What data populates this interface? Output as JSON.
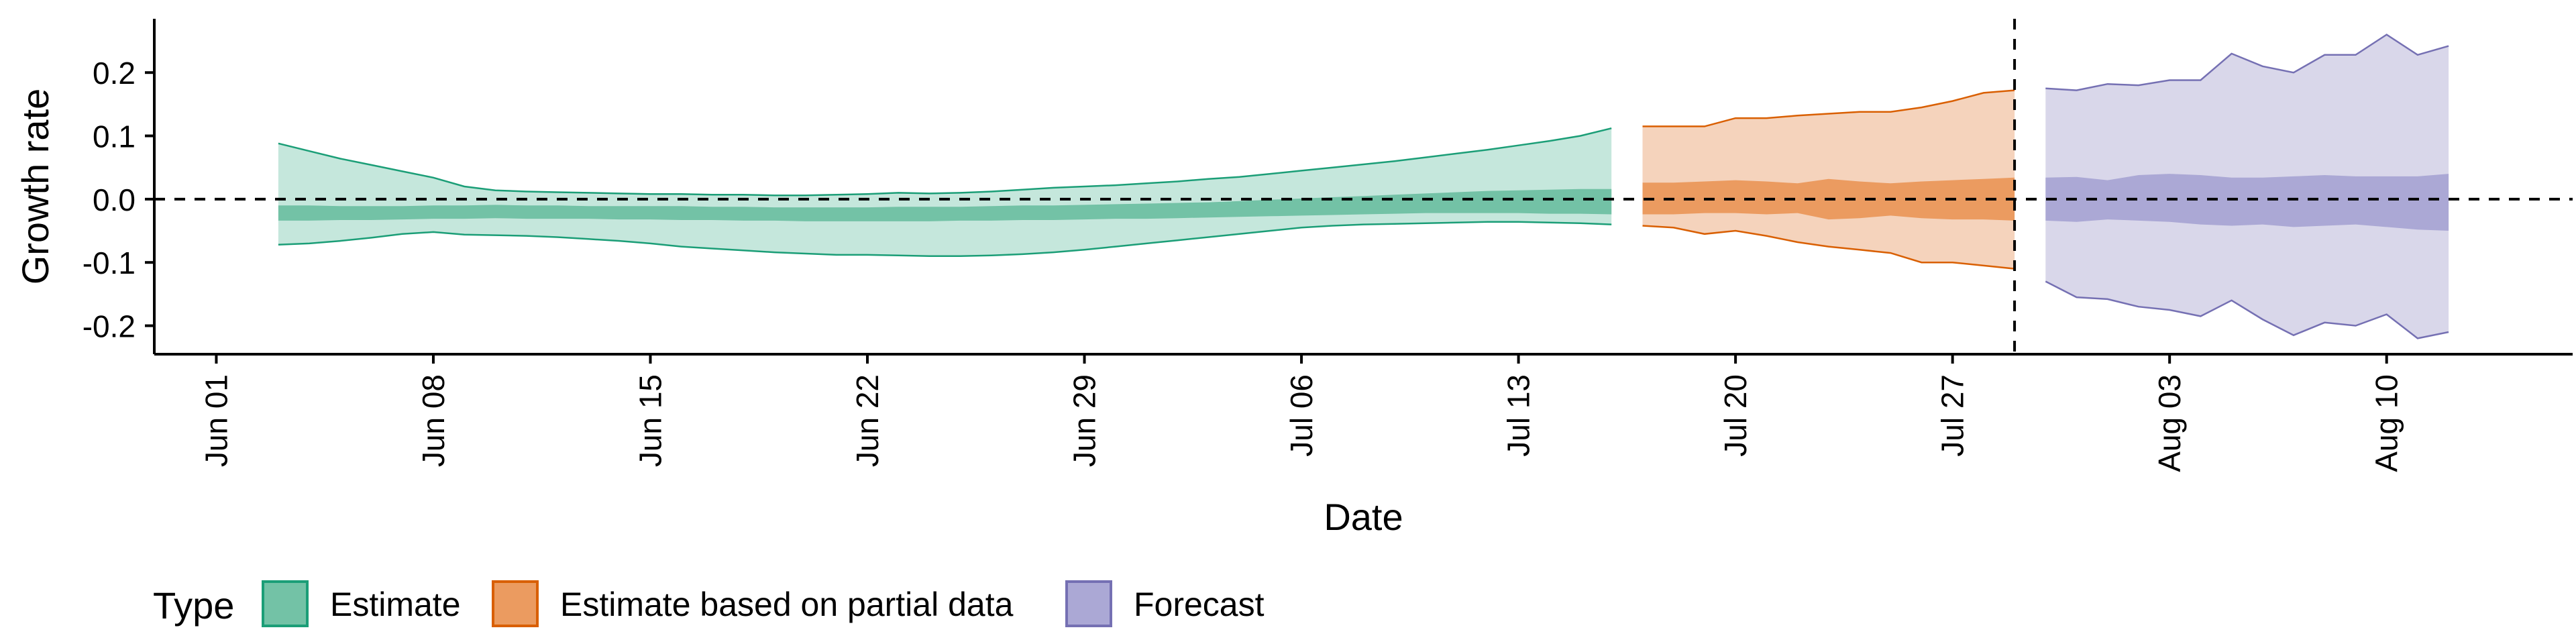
{
  "chart_data": {
    "type": "area",
    "xlabel": "Date",
    "ylabel": "Growth rate",
    "xlim": [
      "2020-05-30",
      "2020-08-16"
    ],
    "ylim": [
      -0.245,
      0.285
    ],
    "x_ticks": [
      "2020-06-01",
      "2020-06-08",
      "2020-06-15",
      "2020-06-22",
      "2020-06-29",
      "2020-07-06",
      "2020-07-13",
      "2020-07-20",
      "2020-07-27",
      "2020-08-03",
      "2020-08-10"
    ],
    "x_tick_labels": [
      "Jun 01",
      "Jun 08",
      "Jun 15",
      "Jun 22",
      "Jun 29",
      "Jul 06",
      "Jul 13",
      "Jul 20",
      "Jul 27",
      "Aug 03",
      "Aug 10"
    ],
    "y_ticks": [
      -0.2,
      -0.1,
      0.0,
      0.1,
      0.2
    ],
    "y_tick_labels": [
      "-0.2",
      "-0.1",
      "0.0",
      "0.1",
      "0.2"
    ],
    "reference_lines": {
      "horizontal_y": 0.0,
      "vertical_x": "2020-07-29"
    },
    "grid": false,
    "legend": {
      "title": "Type",
      "position": "bottom-left",
      "entries": [
        "Estimate",
        "Estimate based on partial data",
        "Forecast"
      ]
    },
    "series": [
      {
        "name": "Estimate",
        "color": "#1b9e77",
        "fill_outer": "#c5e7dc",
        "fill_inner": "#73c2a6",
        "x": [
          "2020-06-03",
          "2020-06-04",
          "2020-06-05",
          "2020-06-06",
          "2020-06-07",
          "2020-06-08",
          "2020-06-09",
          "2020-06-10",
          "2020-06-11",
          "2020-06-12",
          "2020-06-13",
          "2020-06-14",
          "2020-06-15",
          "2020-06-16",
          "2020-06-17",
          "2020-06-18",
          "2020-06-19",
          "2020-06-20",
          "2020-06-21",
          "2020-06-22",
          "2020-06-23",
          "2020-06-24",
          "2020-06-25",
          "2020-06-26",
          "2020-06-27",
          "2020-06-28",
          "2020-06-29",
          "2020-06-30",
          "2020-07-01",
          "2020-07-02",
          "2020-07-03",
          "2020-07-04",
          "2020-07-05",
          "2020-07-06",
          "2020-07-07",
          "2020-07-08",
          "2020-07-09",
          "2020-07-10",
          "2020-07-11",
          "2020-07-12",
          "2020-07-13",
          "2020-07-14",
          "2020-07-15",
          "2020-07-16"
        ],
        "upper90": [
          0.088,
          0.076,
          0.064,
          0.054,
          0.044,
          0.034,
          0.02,
          0.014,
          0.012,
          0.011,
          0.01,
          0.009,
          0.008,
          0.008,
          0.007,
          0.007,
          0.006,
          0.006,
          0.007,
          0.008,
          0.01,
          0.009,
          0.01,
          0.012,
          0.015,
          0.018,
          0.02,
          0.022,
          0.025,
          0.028,
          0.032,
          0.035,
          0.04,
          0.045,
          0.05,
          0.055,
          0.06,
          0.066,
          0.072,
          0.078,
          0.085,
          0.092,
          0.1,
          0.112
        ],
        "upper50": [
          -0.01,
          -0.01,
          -0.011,
          -0.011,
          -0.011,
          -0.01,
          -0.01,
          -0.009,
          -0.01,
          -0.01,
          -0.011,
          -0.011,
          -0.011,
          -0.011,
          -0.012,
          -0.012,
          -0.013,
          -0.013,
          -0.013,
          -0.013,
          -0.012,
          -0.012,
          -0.012,
          -0.011,
          -0.01,
          -0.01,
          -0.009,
          -0.008,
          -0.007,
          -0.006,
          -0.005,
          -0.003,
          -0.001,
          0.001,
          0.003,
          0.005,
          0.007,
          0.009,
          0.011,
          0.013,
          0.014,
          0.015,
          0.016,
          0.016
        ],
        "lower50": [
          -0.034,
          -0.034,
          -0.033,
          -0.033,
          -0.032,
          -0.031,
          -0.031,
          -0.03,
          -0.031,
          -0.031,
          -0.031,
          -0.032,
          -0.032,
          -0.033,
          -0.033,
          -0.034,
          -0.034,
          -0.035,
          -0.035,
          -0.035,
          -0.035,
          -0.035,
          -0.034,
          -0.034,
          -0.033,
          -0.033,
          -0.032,
          -0.031,
          -0.031,
          -0.03,
          -0.029,
          -0.028,
          -0.027,
          -0.026,
          -0.025,
          -0.024,
          -0.023,
          -0.022,
          -0.022,
          -0.022,
          -0.022,
          -0.023,
          -0.023,
          -0.024
        ],
        "lower90": [
          -0.072,
          -0.07,
          -0.066,
          -0.061,
          -0.055,
          -0.052,
          -0.056,
          -0.057,
          -0.058,
          -0.06,
          -0.063,
          -0.066,
          -0.07,
          -0.075,
          -0.078,
          -0.081,
          -0.084,
          -0.086,
          -0.088,
          -0.088,
          -0.089,
          -0.09,
          -0.09,
          -0.089,
          -0.087,
          -0.084,
          -0.08,
          -0.075,
          -0.07,
          -0.065,
          -0.06,
          -0.055,
          -0.05,
          -0.045,
          -0.042,
          -0.04,
          -0.039,
          -0.038,
          -0.037,
          -0.036,
          -0.036,
          -0.037,
          -0.038,
          -0.04
        ]
      },
      {
        "name": "Estimate based on partial data",
        "color": "#d95f02",
        "fill_outer": "#f5d3bc",
        "fill_inner": "#eb9b60",
        "x": [
          "2020-07-17",
          "2020-07-18",
          "2020-07-19",
          "2020-07-20",
          "2020-07-21",
          "2020-07-22",
          "2020-07-23",
          "2020-07-24",
          "2020-07-25",
          "2020-07-26",
          "2020-07-27",
          "2020-07-28",
          "2020-07-29"
        ],
        "upper90": [
          0.115,
          0.115,
          0.115,
          0.128,
          0.128,
          0.132,
          0.135,
          0.138,
          0.138,
          0.145,
          0.155,
          0.168,
          0.172
        ],
        "upper50": [
          0.026,
          0.026,
          0.028,
          0.03,
          0.028,
          0.025,
          0.032,
          0.028,
          0.025,
          0.028,
          0.03,
          0.032,
          0.034
        ],
        "lower50": [
          -0.024,
          -0.024,
          -0.022,
          -0.022,
          -0.024,
          -0.022,
          -0.032,
          -0.03,
          -0.026,
          -0.03,
          -0.032,
          -0.032,
          -0.034
        ],
        "lower90": [
          -0.042,
          -0.045,
          -0.055,
          -0.05,
          -0.058,
          -0.068,
          -0.075,
          -0.08,
          -0.085,
          -0.1,
          -0.1,
          -0.105,
          -0.11
        ]
      },
      {
        "name": "Forecast",
        "color": "#7570b3",
        "fill_outer": "#d9d7ea",
        "fill_inner": "#aba8d5",
        "x": [
          "2020-07-30",
          "2020-07-31",
          "2020-08-01",
          "2020-08-02",
          "2020-08-03",
          "2020-08-04",
          "2020-08-05",
          "2020-08-06",
          "2020-08-07",
          "2020-08-08",
          "2020-08-09",
          "2020-08-10",
          "2020-08-11",
          "2020-08-12"
        ],
        "upper90": [
          0.175,
          0.172,
          0.182,
          0.18,
          0.188,
          0.188,
          0.23,
          0.21,
          0.2,
          0.228,
          0.228,
          0.26,
          0.228,
          0.242
        ],
        "upper50": [
          0.034,
          0.035,
          0.03,
          0.038,
          0.04,
          0.038,
          0.034,
          0.034,
          0.036,
          0.038,
          0.036,
          0.036,
          0.036,
          0.04
        ],
        "lower50": [
          -0.034,
          -0.036,
          -0.032,
          -0.034,
          -0.036,
          -0.04,
          -0.042,
          -0.04,
          -0.044,
          -0.042,
          -0.04,
          -0.044,
          -0.048,
          -0.05
        ],
        "lower90": [
          -0.13,
          -0.155,
          -0.158,
          -0.17,
          -0.175,
          -0.185,
          -0.16,
          -0.19,
          -0.215,
          -0.195,
          -0.2,
          -0.182,
          -0.22,
          -0.21
        ]
      }
    ]
  }
}
